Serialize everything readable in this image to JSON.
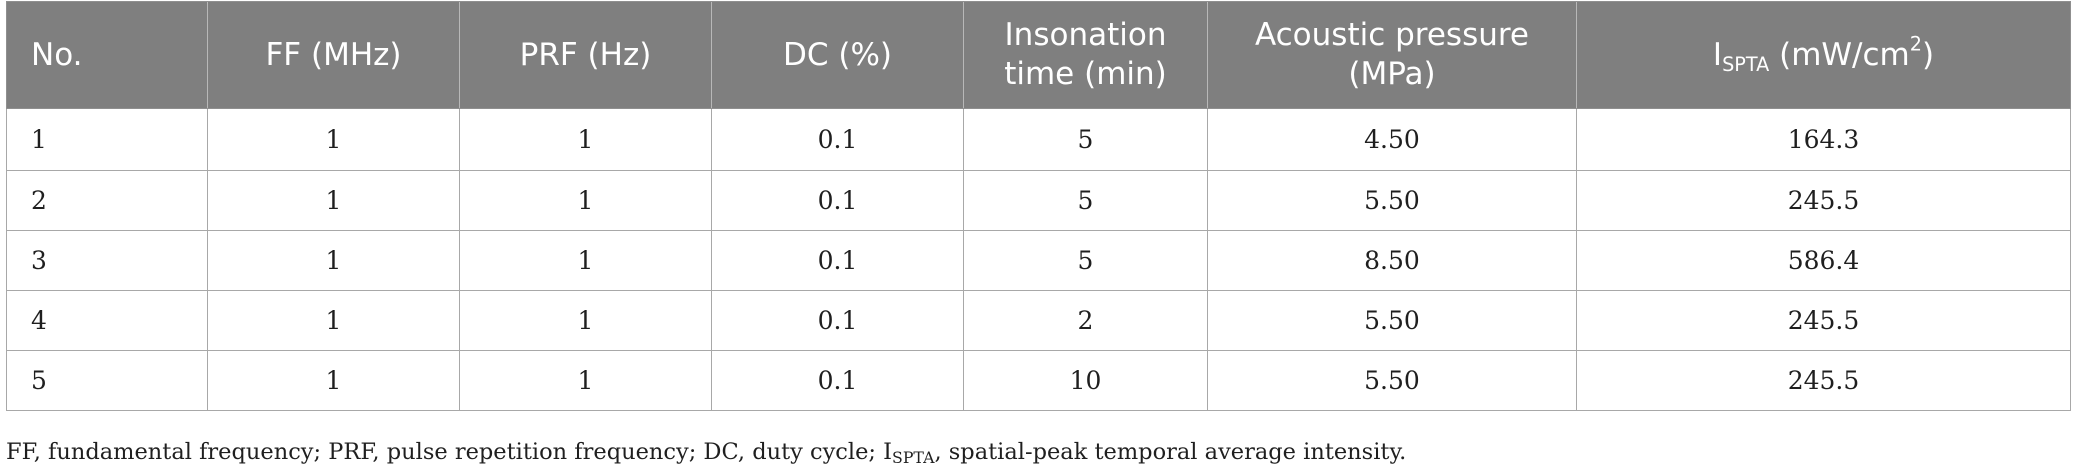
{
  "table": {
    "headers": {
      "no": "No.",
      "ff": "FF (MHz)",
      "prf": "PRF (Hz)",
      "dc": "DC (%)",
      "insonation_line1": "Insonation",
      "insonation_line2": "time (min)",
      "pressure_line1": "Acoustic pressure",
      "pressure_line2": "(MPa)",
      "ispta_base": "I",
      "ispta_sub": "SPTA",
      "ispta_unit": "(mW/cm",
      "ispta_sup": "2",
      "ispta_close": ")"
    },
    "rows": [
      {
        "no": "1",
        "ff": "1",
        "prf": "1",
        "dc": "0.1",
        "time": "5",
        "pressure": "4.50",
        "ispta": "164.3"
      },
      {
        "no": "2",
        "ff": "1",
        "prf": "1",
        "dc": "0.1",
        "time": "5",
        "pressure": "5.50",
        "ispta": "245.5"
      },
      {
        "no": "3",
        "ff": "1",
        "prf": "1",
        "dc": "0.1",
        "time": "5",
        "pressure": "8.50",
        "ispta": "586.4"
      },
      {
        "no": "4",
        "ff": "1",
        "prf": "1",
        "dc": "0.1",
        "time": "2",
        "pressure": "5.50",
        "ispta": "245.5"
      },
      {
        "no": "5",
        "ff": "1",
        "prf": "1",
        "dc": "0.1",
        "time": "10",
        "pressure": "5.50",
        "ispta": "245.5"
      }
    ]
  },
  "footnote": {
    "text_before": "FF, fundamental frequency; PRF, pulse repetition frequency; DC, duty cycle; I",
    "sub": "SPTA",
    "text_after": ", spatial-peak temporal average intensity."
  },
  "colors": {
    "header_background": "#7f7f7f",
    "header_text": "#ffffff",
    "border": "#a8a8a8",
    "body_text": "#1f1f1f"
  }
}
